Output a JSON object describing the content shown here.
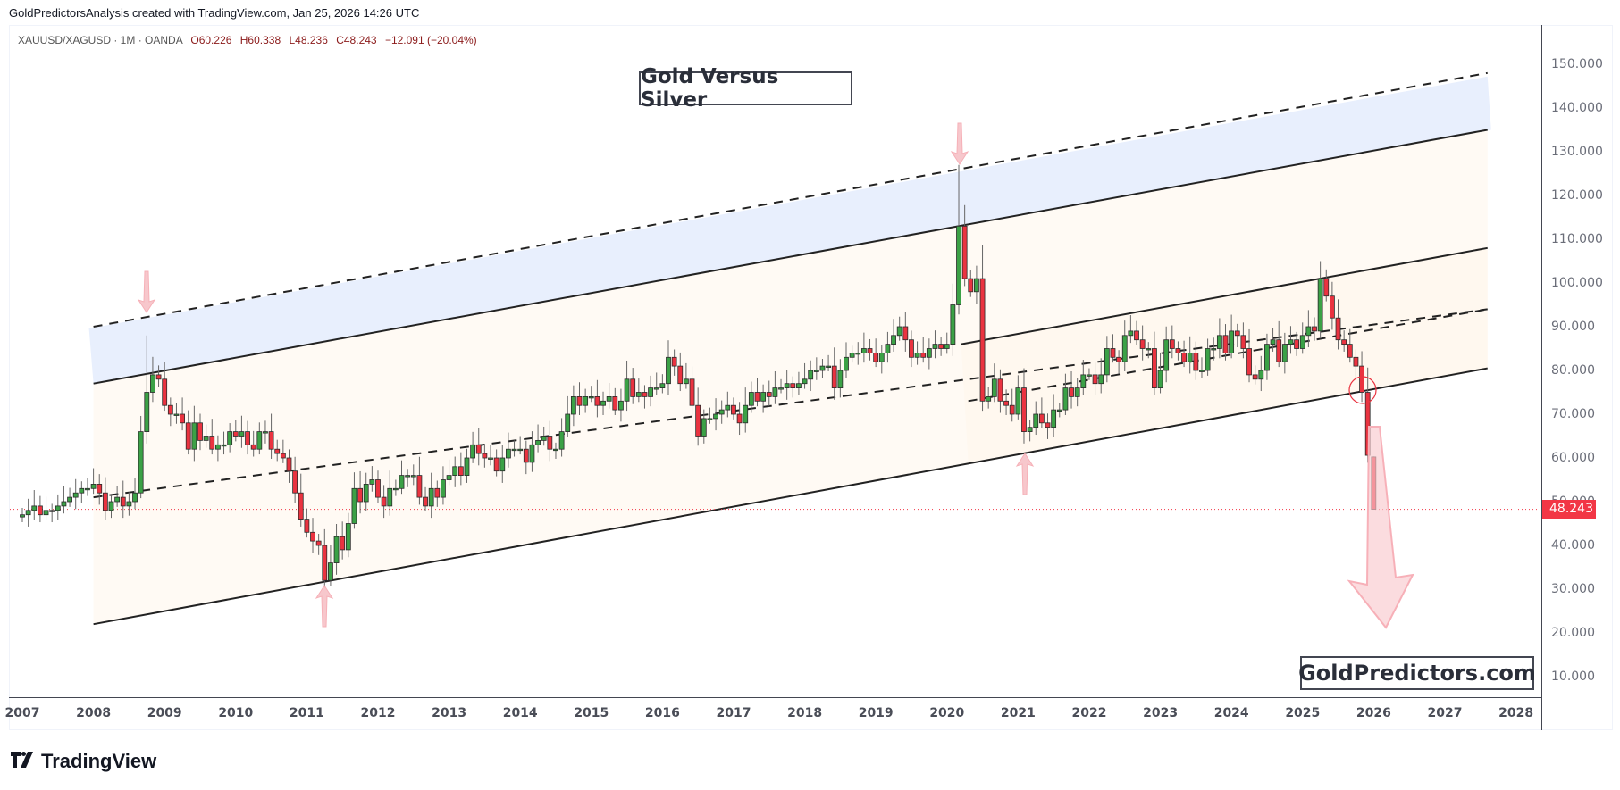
{
  "header": {
    "credit": "GoldPredictorsAnalysis created with TradingView.com, Jan 25, 2026 14:26 UTC"
  },
  "legend": {
    "symbol": "XAUUSD/XAGUSD · 1M · OANDA",
    "open": "O60.226",
    "high": "H60.338",
    "low": "L48.236",
    "close": "C48.243",
    "change": "−12.091 (−20.04%)"
  },
  "annotations": {
    "title": "Gold Versus Silver",
    "brand": "GoldPredictors.com"
  },
  "price_axis": {
    "labels": [
      "150.000",
      "140.000",
      "130.000",
      "120.000",
      "110.000",
      "100.000",
      "90.000",
      "80.000",
      "70.000",
      "60.000",
      "50.000",
      "40.000",
      "30.000",
      "20.000",
      "10.000"
    ],
    "current_price": "48.243"
  },
  "time_axis": {
    "labels": [
      "2007",
      "2008",
      "2009",
      "2010",
      "2011",
      "2012",
      "2013",
      "2014",
      "2015",
      "2016",
      "2017",
      "2018",
      "2019",
      "2020",
      "2021",
      "2022",
      "2023",
      "2024",
      "2025",
      "2026",
      "2027",
      "2028"
    ]
  },
  "footer": {
    "logo_text": "TradingView"
  },
  "colors": {
    "up": "#3ba146",
    "down": "#ea3340",
    "candle_border": "#1f3b24",
    "price_line": "#f23645",
    "outer_channel_fill": "#e8effd",
    "inner_channel_fill": "#fffaf4",
    "arrow": "#f7b5bc"
  },
  "chart_data": {
    "type": "candlestick",
    "title": "Gold Versus Silver",
    "symbol": "XAUUSD/XAGUSD",
    "interval": "1M",
    "source": "OANDA",
    "ylim": [
      5,
      155
    ],
    "x_start": "2007-01",
    "x_range_labels": [
      "2007",
      "2028"
    ],
    "last_bar": {
      "open": 60.226,
      "high": 60.338,
      "low": 48.236,
      "close": 48.243,
      "change": -12.091,
      "change_pct": -20.04
    },
    "closes_monthly": [
      47,
      48,
      49,
      47,
      48,
      48,
      49,
      50,
      51,
      52,
      53,
      53,
      54,
      52,
      48,
      50,
      51,
      49,
      50,
      52,
      66,
      75,
      79,
      78,
      72,
      70,
      70,
      68,
      62,
      68,
      64,
      65,
      62,
      63,
      63,
      66,
      65,
      66,
      63,
      62,
      66,
      66,
      62,
      61,
      60,
      57,
      52,
      46,
      43,
      41,
      40,
      32,
      36,
      42,
      39,
      45,
      53,
      50,
      54,
      55,
      51,
      49,
      53,
      53,
      56,
      56,
      56,
      51,
      49,
      53,
      51,
      55,
      56,
      58,
      56,
      60,
      63,
      61,
      60,
      60,
      57,
      60,
      62,
      62,
      62,
      59,
      63,
      64,
      65,
      62,
      62,
      66,
      70,
      74,
      72,
      74,
      74,
      72,
      73,
      74,
      71,
      73,
      78,
      74,
      75,
      74,
      76,
      76,
      77,
      83,
      81,
      77,
      78,
      72,
      65,
      69,
      69,
      70,
      71,
      72,
      70,
      68,
      72,
      75,
      73,
      75,
      74,
      76,
      76,
      77,
      76,
      77,
      78,
      80,
      80,
      81,
      81,
      76,
      80,
      83,
      84,
      84,
      85,
      84,
      82,
      84,
      86,
      88,
      90,
      87,
      83,
      84,
      83,
      85,
      86,
      85,
      86,
      95,
      113,
      101,
      98,
      101,
      73,
      74,
      78,
      73,
      72,
      70,
      76,
      66,
      67,
      70,
      68,
      67,
      71,
      71,
      76,
      74,
      76,
      79,
      79,
      77,
      79,
      85,
      83,
      82,
      88,
      89,
      87,
      85,
      85,
      76,
      80,
      87,
      85,
      84,
      82,
      84,
      80,
      80,
      85,
      85,
      88,
      84,
      89,
      88,
      85,
      79,
      78,
      80,
      86,
      87,
      82,
      86,
      87,
      85,
      88,
      90,
      89,
      101,
      97,
      92,
      87,
      86,
      83,
      81,
      75,
      60.6,
      48.243
    ],
    "notable_highs": [
      {
        "date": "2008-10",
        "value": 88
      },
      {
        "date": "2020-03",
        "value": 127
      },
      {
        "date": "2025-04",
        "value": 105
      }
    ],
    "notable_lows": [
      {
        "date": "2011-04",
        "value": 31
      },
      {
        "date": "2021-02",
        "value": 62
      }
    ],
    "channels": [
      {
        "name": "outer-rising-channel",
        "upper_dashed": [
          [
            2008.0,
            90
          ],
          [
            2027.6,
            148
          ]
        ],
        "upper": [
          [
            2008.0,
            77
          ],
          [
            2027.6,
            135
          ]
        ],
        "mid_dashed": [
          [
            2008.0,
            51
          ],
          [
            2027.6,
            94
          ]
        ],
        "lower": [
          [
            2008.0,
            22
          ],
          [
            2027.6,
            80.5
          ]
        ]
      },
      {
        "name": "inner-rising-channel",
        "upper": [
          [
            2020.2,
            86
          ],
          [
            2027.6,
            108
          ]
        ],
        "mid_dashed": [
          [
            2020.3,
            73
          ],
          [
            2027.6,
            94
          ]
        ],
        "lower": [
          [
            2020.3,
            59
          ],
          [
            2027.6,
            80.5
          ]
        ]
      }
    ],
    "markers": [
      {
        "type": "arrow-down",
        "date": "2008-10",
        "value": 88
      },
      {
        "type": "arrow-up",
        "date": "2011-04",
        "value": 31
      },
      {
        "type": "arrow-down",
        "date": "2020-03",
        "value": 127
      },
      {
        "type": "arrow-up",
        "date": "2021-02",
        "value": 62
      },
      {
        "type": "circle",
        "date": "2025-11",
        "value": 75
      },
      {
        "type": "big-arrow-down",
        "from_value": 72,
        "to_value": 20
      }
    ],
    "grid": false
  }
}
